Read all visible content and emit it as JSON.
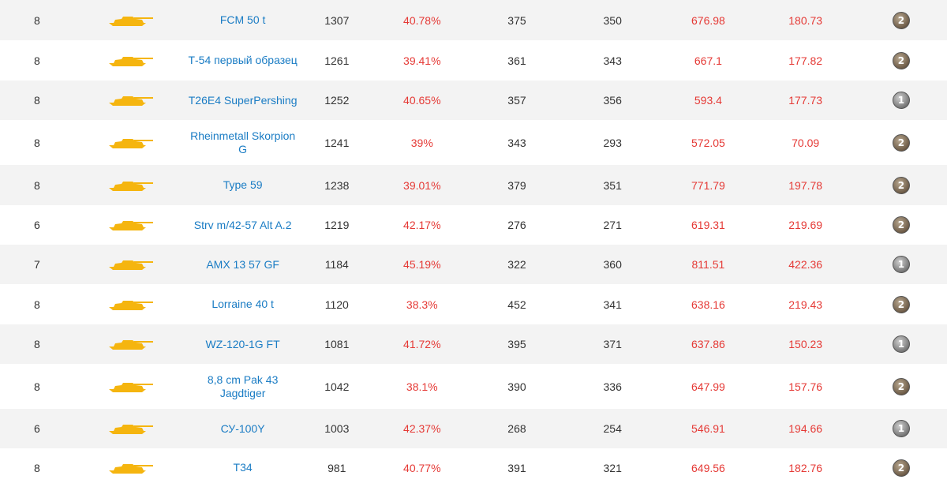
{
  "rows": [
    {
      "tier": "8",
      "name": "FCM 50 t",
      "battles": "1307",
      "winrate": "40.78%",
      "c1": "375",
      "c2": "350",
      "dmg": "676.98",
      "frags": "180.73",
      "badge": "2",
      "icon": "tank-silhouette-icon"
    },
    {
      "tier": "8",
      "name": "Т-54 первый образец",
      "battles": "1261",
      "winrate": "39.41%",
      "c1": "361",
      "c2": "343",
      "dmg": "667.1",
      "frags": "177.82",
      "badge": "2",
      "icon": "tank-silhouette-icon"
    },
    {
      "tier": "8",
      "name": "T26E4 SuperPershing",
      "battles": "1252",
      "winrate": "40.65%",
      "c1": "357",
      "c2": "356",
      "dmg": "593.4",
      "frags": "177.73",
      "badge": "1",
      "icon": "tank-silhouette-icon"
    },
    {
      "tier": "8",
      "name": "Rheinmetall Skorpion G",
      "battles": "1241",
      "winrate": "39%",
      "c1": "343",
      "c2": "293",
      "dmg": "572.05",
      "frags": "70.09",
      "badge": "2",
      "icon": "tank-silhouette-icon"
    },
    {
      "tier": "8",
      "name": "Type 59",
      "battles": "1238",
      "winrate": "39.01%",
      "c1": "379",
      "c2": "351",
      "dmg": "771.79",
      "frags": "197.78",
      "badge": "2",
      "icon": "tank-silhouette-icon"
    },
    {
      "tier": "6",
      "name": "Strv m/42-57 Alt A.2",
      "battles": "1219",
      "winrate": "42.17%",
      "c1": "276",
      "c2": "271",
      "dmg": "619.31",
      "frags": "219.69",
      "badge": "2",
      "icon": "tank-silhouette-icon"
    },
    {
      "tier": "7",
      "name": "AMX 13 57 GF",
      "battles": "1184",
      "winrate": "45.19%",
      "c1": "322",
      "c2": "360",
      "dmg": "811.51",
      "frags": "422.36",
      "badge": "1",
      "icon": "tank-silhouette-icon"
    },
    {
      "tier": "8",
      "name": "Lorraine 40 t",
      "battles": "1120",
      "winrate": "38.3%",
      "c1": "452",
      "c2": "341",
      "dmg": "638.16",
      "frags": "219.43",
      "badge": "2",
      "icon": "tank-silhouette-icon"
    },
    {
      "tier": "8",
      "name": "WZ-120-1G FT",
      "battles": "1081",
      "winrate": "41.72%",
      "c1": "395",
      "c2": "371",
      "dmg": "637.86",
      "frags": "150.23",
      "badge": "1",
      "icon": "tank-silhouette-icon"
    },
    {
      "tier": "8",
      "name": "8,8 cm Pak 43 Jagdtiger",
      "battles": "1042",
      "winrate": "38.1%",
      "c1": "390",
      "c2": "336",
      "dmg": "647.99",
      "frags": "157.76",
      "badge": "2",
      "icon": "tank-silhouette-icon"
    },
    {
      "tier": "6",
      "name": "СУ-100Y",
      "battles": "1003",
      "winrate": "42.37%",
      "c1": "268",
      "c2": "254",
      "dmg": "546.91",
      "frags": "194.66",
      "badge": "1",
      "icon": "tank-silhouette-icon"
    },
    {
      "tier": "8",
      "name": "T34",
      "battles": "981",
      "winrate": "40.77%",
      "c1": "391",
      "c2": "321",
      "dmg": "649.56",
      "frags": "182.76",
      "badge": "2",
      "icon": "tank-silhouette-icon"
    }
  ],
  "colors": {
    "link": "#1a7cc4",
    "negative": "#e53935",
    "tank": "#f5b50f",
    "stripe": "#f3f3f3"
  }
}
